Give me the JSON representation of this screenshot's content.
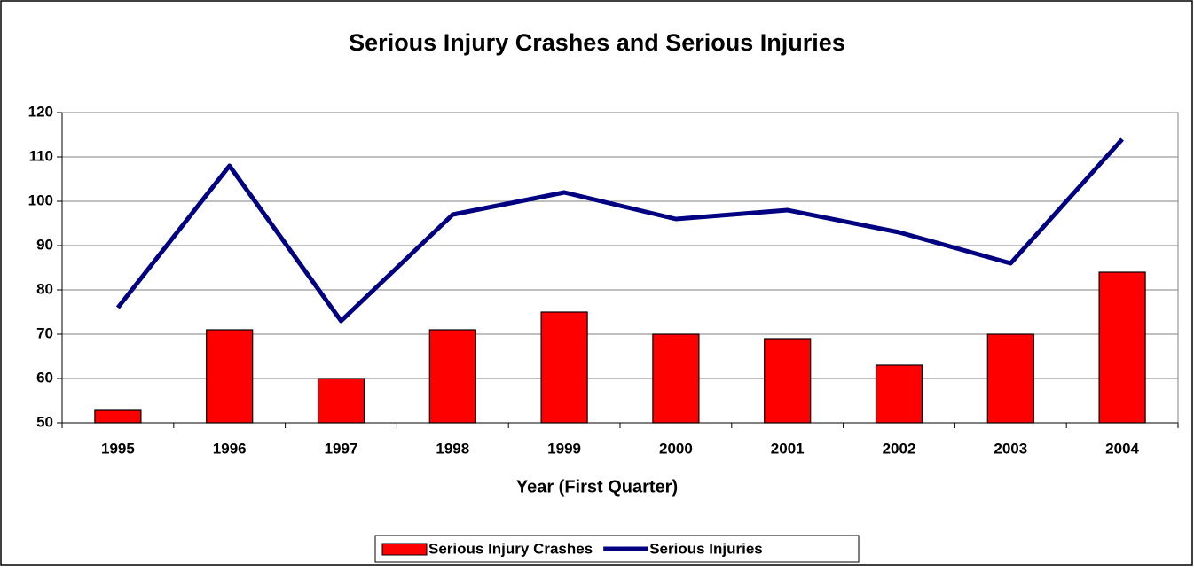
{
  "chart_data": {
    "type": "combo",
    "title": "Serious Injury Crashes and Serious Injuries",
    "x_label": "Year (First Quarter)",
    "categories": [
      "1995",
      "1996",
      "1997",
      "1998",
      "1999",
      "2000",
      "2001",
      "2002",
      "2003",
      "2004"
    ],
    "series": [
      {
        "name": "Serious Injury Crashes",
        "type": "bar",
        "color": "#ff0000",
        "values": [
          53,
          71,
          60,
          71,
          75,
          70,
          69,
          63,
          70,
          84
        ]
      },
      {
        "name": "Serious Injuries",
        "type": "line",
        "color": "#000080",
        "values": [
          76,
          108,
          73,
          97,
          102,
          96,
          98,
          93,
          86,
          114
        ]
      }
    ],
    "ylim": [
      50,
      120
    ],
    "yticks": [
      50,
      60,
      70,
      80,
      90,
      100,
      110,
      120
    ],
    "grid": true,
    "legend": "bottom"
  }
}
